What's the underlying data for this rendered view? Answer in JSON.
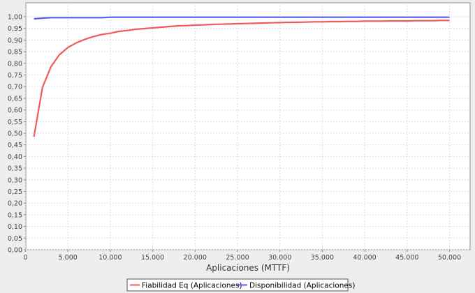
{
  "chart_data": {
    "type": "line",
    "title": "",
    "xlabel": "Aplicaciones (MTTF)",
    "ylabel": "",
    "xlim": [
      0,
      52500
    ],
    "ylim": [
      0,
      1.03
    ],
    "grid": true,
    "legend": "bottom-center",
    "x_ticks": [
      {
        "value": 0,
        "label": "0"
      },
      {
        "value": 5000,
        "label": "5.000"
      },
      {
        "value": 10000,
        "label": "10.000"
      },
      {
        "value": 15000,
        "label": "15.000"
      },
      {
        "value": 20000,
        "label": "20.000"
      },
      {
        "value": 25000,
        "label": "25.000"
      },
      {
        "value": 30000,
        "label": "30.000"
      },
      {
        "value": 35000,
        "label": "35.000"
      },
      {
        "value": 40000,
        "label": "40.000"
      },
      {
        "value": 45000,
        "label": "45.000"
      },
      {
        "value": 50000,
        "label": "50.000"
      }
    ],
    "y_ticks": [
      {
        "value": 0.0,
        "label": "0,00"
      },
      {
        "value": 0.05,
        "label": "0,05"
      },
      {
        "value": 0.1,
        "label": "0,10"
      },
      {
        "value": 0.15,
        "label": "0,15"
      },
      {
        "value": 0.2,
        "label": "0,20"
      },
      {
        "value": 0.25,
        "label": "0,25"
      },
      {
        "value": 0.3,
        "label": "0,30"
      },
      {
        "value": 0.35,
        "label": "0,35"
      },
      {
        "value": 0.4,
        "label": "0,40"
      },
      {
        "value": 0.45,
        "label": "0,45"
      },
      {
        "value": 0.5,
        "label": "0,50"
      },
      {
        "value": 0.55,
        "label": "0,55"
      },
      {
        "value": 0.6,
        "label": "0,60"
      },
      {
        "value": 0.65,
        "label": "0,65"
      },
      {
        "value": 0.7,
        "label": "0,70"
      },
      {
        "value": 0.75,
        "label": "0,75"
      },
      {
        "value": 0.8,
        "label": "0,80"
      },
      {
        "value": 0.85,
        "label": "0,85"
      },
      {
        "value": 0.9,
        "label": "0,90"
      },
      {
        "value": 0.95,
        "label": "0,95"
      },
      {
        "value": 1.0,
        "label": "1,00"
      }
    ],
    "x": [
      1000,
      2000,
      3000,
      4000,
      5000,
      6000,
      7000,
      8000,
      9000,
      10000,
      11000,
      12000,
      13000,
      14000,
      15000,
      16000,
      17000,
      18000,
      19000,
      20000,
      21000,
      22000,
      23000,
      24000,
      25000,
      26000,
      27000,
      28000,
      29000,
      30000,
      31000,
      32000,
      33000,
      34000,
      35000,
      36000,
      37000,
      38000,
      39000,
      40000,
      41000,
      42000,
      43000,
      44000,
      45000,
      46000,
      47000,
      48000,
      49000,
      50000
    ],
    "series": [
      {
        "name": "Fiabilidad Eq (Aplicaciones)",
        "color": "#f05a5a",
        "values": [
          0.485,
          0.697,
          0.785,
          0.837,
          0.868,
          0.888,
          0.903,
          0.915,
          0.924,
          0.929,
          0.937,
          0.941,
          0.946,
          0.949,
          0.952,
          0.955,
          0.958,
          0.961,
          0.962,
          0.964,
          0.965,
          0.967,
          0.968,
          0.969,
          0.97,
          0.971,
          0.972,
          0.973,
          0.974,
          0.975,
          0.976,
          0.976,
          0.977,
          0.978,
          0.978,
          0.979,
          0.979,
          0.98,
          0.98,
          0.981,
          0.981,
          0.981,
          0.982,
          0.982,
          0.982,
          0.983,
          0.983,
          0.983,
          0.984,
          0.984
        ]
      },
      {
        "name": "Disponibilidad (Aplicaciones)",
        "color": "#5a5af0",
        "values": [
          0.991,
          0.994,
          0.996,
          0.996,
          0.996,
          0.996,
          0.996,
          0.996,
          0.996,
          0.998,
          0.998,
          0.998,
          0.998,
          0.998,
          0.998,
          0.998,
          0.998,
          0.998,
          0.998,
          0.998,
          0.998,
          0.998,
          0.998,
          0.998,
          0.998,
          0.998,
          0.998,
          0.998,
          0.998,
          0.998,
          0.998,
          0.998,
          0.998,
          0.998,
          0.998,
          0.998,
          0.998,
          0.998,
          0.998,
          0.998,
          0.998,
          0.998,
          0.998,
          0.998,
          0.998,
          0.998,
          0.998,
          0.998,
          0.998,
          0.998
        ]
      }
    ]
  }
}
